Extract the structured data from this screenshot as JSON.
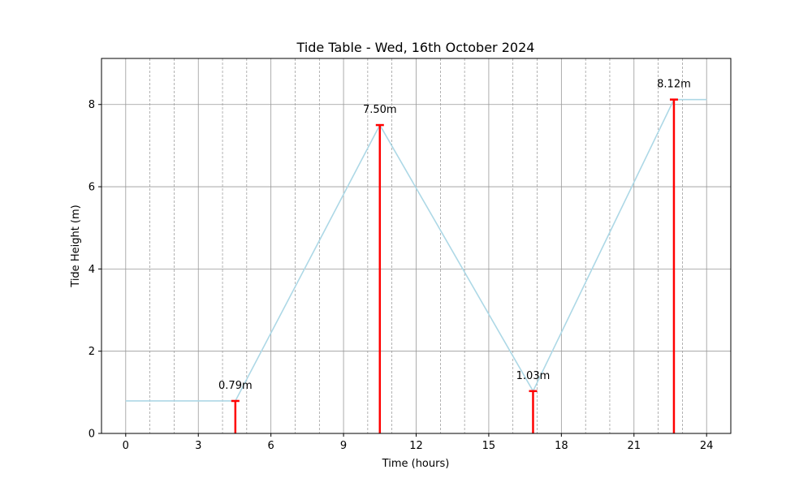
{
  "chart_data": {
    "type": "line",
    "title": "Tide Table - Wed, 16th October 2024",
    "xlabel": "Time (hours)",
    "ylabel": "Tide Height (m)",
    "xlim": [
      -1,
      25
    ],
    "ylim": [
      0,
      9.12
    ],
    "x_ticks": [
      0,
      3,
      6,
      9,
      12,
      15,
      18,
      21,
      24
    ],
    "y_ticks": [
      0,
      2,
      4,
      6,
      8
    ],
    "grid": true,
    "series": [
      {
        "x": [
          0,
          4.53,
          10.5,
          16.83,
          22.65,
          24
        ],
        "y": [
          0.79,
          0.79,
          7.5,
          1.03,
          8.12,
          8.12
        ],
        "color": "#add8e6"
      }
    ],
    "markers": [
      {
        "x": 4.53,
        "y": 0.79,
        "label": "0.79m"
      },
      {
        "x": 10.5,
        "y": 7.5,
        "label": "7.50m"
      },
      {
        "x": 16.83,
        "y": 1.03,
        "label": "1.03m"
      },
      {
        "x": 22.65,
        "y": 8.12,
        "label": "8.12m"
      }
    ],
    "marker_color": "#ff0000"
  }
}
